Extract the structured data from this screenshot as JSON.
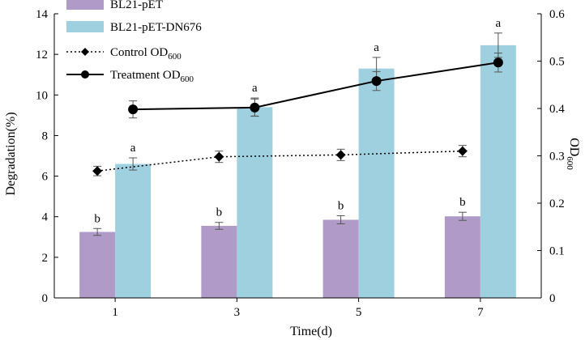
{
  "chart_data": {
    "type": "bar",
    "x": {
      "label": "Time(d)",
      "categories": [
        "1",
        "3",
        "5",
        "7"
      ]
    },
    "y_left": {
      "label": "Degradation(%)",
      "lim": [
        0,
        14
      ],
      "ticks": [
        0,
        2,
        4,
        6,
        8,
        10,
        12,
        14
      ]
    },
    "y_right": {
      "label_main": "OD",
      "label_sub": "600",
      "lim": [
        0,
        0.6
      ],
      "ticks": [
        "0",
        "0.1",
        "0.2",
        "0.3",
        "0.4",
        "0.5",
        "0.6"
      ],
      "tick_values": [
        0,
        0.1,
        0.2,
        0.3,
        0.4,
        0.5,
        0.6
      ]
    },
    "bar_series": [
      {
        "name": "BL21-pET",
        "color": "#b09ac8",
        "values": [
          3.25,
          3.55,
          3.85,
          4.02
        ],
        "errors": [
          0.17,
          0.17,
          0.2,
          0.2
        ],
        "labels": [
          "b",
          "b",
          "b",
          "b"
        ]
      },
      {
        "name": "BL21-pET-DN676",
        "color": "#9fd0e0",
        "values": [
          6.6,
          9.4,
          11.3,
          12.45
        ],
        "errors": [
          0.3,
          0.45,
          0.55,
          0.6
        ],
        "labels": [
          "a",
          "a",
          "a",
          "a"
        ]
      }
    ],
    "line_series": [
      {
        "name": "Control OD",
        "name_sub": "600",
        "style": "dotted",
        "marker": "diamond",
        "values": [
          0.268,
          0.298,
          0.302,
          0.31
        ],
        "errors": [
          0.01,
          0.012,
          0.012,
          0.012
        ]
      },
      {
        "name": "Treatment OD",
        "name_sub": "600",
        "style": "solid",
        "marker": "circle",
        "values": [
          0.398,
          0.402,
          0.458,
          0.497
        ],
        "errors": [
          0.018,
          0.018,
          0.02,
          0.02
        ]
      }
    ],
    "legend_position": "top-left"
  }
}
